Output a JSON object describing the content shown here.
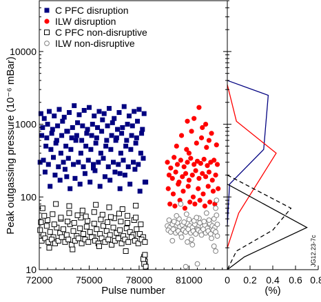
{
  "chart_data": [
    {
      "type": "scatter",
      "panel": "main",
      "xlabel": "Pulse number",
      "ylabel": "Peak outgassing pressure (10⁻⁶ mBar)",
      "xlim": [
        72000,
        83300
      ],
      "ylim": [
        10,
        50000
      ],
      "y_scale": "log",
      "x_ticks": [
        72000,
        75000,
        78000,
        81000
      ],
      "x_tick_labels": [
        "72000",
        "75000",
        "78000",
        "81000"
      ],
      "y_ticks": [
        10,
        100,
        1000,
        10000
      ],
      "y_tick_labels": [
        "10",
        "100",
        "1000",
        "10000"
      ],
      "legend_position": "top-left",
      "series": [
        {
          "name": "C PFC disruption",
          "marker": "filled-square",
          "color": "#000080",
          "x": [
            72100,
            72300,
            72600,
            72900,
            73200,
            73500,
            73800,
            74100,
            74400,
            74700,
            75000,
            75300,
            75600,
            75900,
            76200,
            76500,
            76800,
            77100,
            77400,
            77700,
            78000,
            78300,
            72200,
            72500,
            72800,
            73100,
            73400,
            73700,
            74000,
            74300,
            74600,
            74900,
            75200,
            75500,
            75800,
            76100,
            76400,
            76700,
            77000,
            77300,
            77600,
            77900,
            78200,
            72150,
            72450,
            72750,
            73050,
            73350,
            73650,
            73950,
            74250,
            74550,
            74850,
            75150,
            75450,
            75750,
            76050,
            76350,
            76650,
            76950,
            77250,
            77550,
            77850,
            78150,
            72400,
            72700,
            73000,
            73300,
            73600,
            73900,
            74200,
            74500,
            74800,
            75100,
            75400,
            75700,
            76000,
            76300,
            76600,
            76900,
            77200,
            77500,
            77800,
            78100,
            72250,
            72550,
            72850,
            73150,
            73450,
            73750,
            74050,
            74350,
            74650,
            74950,
            75250,
            75550,
            75850,
            76150,
            76450,
            76750,
            77050,
            77350,
            77650,
            77950,
            78250,
            72350,
            72950,
            73550,
            74150,
            74750,
            75350,
            75950,
            76550,
            77150,
            77750,
            78350,
            72650,
            73250,
            73850,
            74450,
            75050,
            75650,
            76250,
            76850,
            77450,
            78050,
            72050,
            73650,
            75250,
            76850,
            78400
          ],
          "y": [
            1400,
            1200,
            1500,
            1300,
            1600,
            1250,
            1450,
            1800,
            1350,
            1550,
            1700,
            1300,
            1500,
            1400,
            1650,
            1200,
            1450,
            1750,
            1300,
            1500,
            1600,
            1400,
            900,
            1000,
            850,
            950,
            1100,
            800,
            900,
            1050,
            950,
            850,
            1000,
            900,
            1150,
            950,
            1050,
            850,
            900,
            1000,
            950,
            1100,
            850,
            700,
            650,
            750,
            600,
            700,
            800,
            650,
            700,
            600,
            750,
            700,
            650,
            800,
            600,
            700,
            650,
            750,
            600,
            700,
            650,
            750,
            500,
            450,
            550,
            400,
            500,
            450,
            600,
            400,
            500,
            450,
            550,
            400,
            500,
            450,
            600,
            400,
            500,
            450,
            550,
            400,
            320,
            280,
            350,
            260,
            300,
            340,
            280,
            300,
            260,
            320,
            280,
            300,
            340,
            260,
            300,
            280,
            320,
            260,
            300,
            280,
            340,
            220,
            200,
            240,
            180,
            210,
            230,
            190,
            220,
            200,
            240,
            160,
            140,
            170,
            130,
            150,
            160,
            140,
            170,
            130,
            150,
            120,
            300,
            190,
            250,
            210,
            160
          ]
        },
        {
          "name": "ILW disruption",
          "marker": "filled-circle",
          "color": "#ff0000",
          "x": [
            79700,
            79900,
            80100,
            80300,
            80500,
            80700,
            80900,
            81100,
            81300,
            81500,
            81700,
            81900,
            82100,
            82300,
            82500,
            82700,
            79800,
            80000,
            80200,
            80400,
            80600,
            80800,
            81000,
            81200,
            81400,
            81600,
            81800,
            82000,
            82200,
            82400,
            82600,
            79750,
            80050,
            80350,
            80650,
            80950,
            81250,
            81550,
            81850,
            82150,
            82450,
            82750,
            79850,
            80150,
            80450,
            80750,
            81050,
            81350,
            81650,
            81950,
            82250,
            82550,
            80250,
            80850,
            81450,
            82050,
            82650,
            80550,
            81150,
            81750,
            82350,
            81600,
            81300,
            82000,
            81800,
            80900,
            82200,
            81000
          ],
          "y": [
            300,
            250,
            350,
            280,
            320,
            260,
            300,
            340,
            280,
            310,
            290,
            330,
            270,
            300,
            320,
            280,
            200,
            180,
            220,
            160,
            190,
            210,
            170,
            200,
            230,
            180,
            210,
            190,
            220,
            170,
            200,
            130,
            110,
            150,
            120,
            140,
            100,
            130,
            110,
            140,
            120,
            130,
            80,
            75,
            90,
            70,
            85,
            80,
            90,
            75,
            85,
            80,
            500,
            450,
            550,
            480,
            520,
            700,
            800,
            650,
            750,
            1700,
            1200,
            1000,
            900,
            1100,
            600,
            400
          ]
        },
        {
          "name": "C PFC non-disruptive",
          "marker": "open-square",
          "color": "#000000",
          "x": [
            72050,
            72250,
            72450,
            72650,
            72850,
            73050,
            73250,
            73450,
            73650,
            73850,
            74050,
            74250,
            74450,
            74650,
            74850,
            75050,
            75250,
            75450,
            75650,
            75850,
            76050,
            76250,
            76450,
            76650,
            76850,
            77050,
            77250,
            77450,
            77650,
            77850,
            78050,
            78250,
            72150,
            72350,
            72550,
            72750,
            72950,
            73150,
            73350,
            73550,
            73750,
            73950,
            74150,
            74350,
            74550,
            74750,
            74950,
            75150,
            75350,
            75550,
            75750,
            75950,
            76150,
            76350,
            76550,
            76750,
            76950,
            77150,
            77350,
            77550,
            77750,
            77950,
            78150,
            78350,
            72100,
            72500,
            72900,
            73300,
            73700,
            74100,
            74500,
            74900,
            75300,
            75700,
            76100,
            76500,
            76900,
            77300,
            77700,
            78100,
            72300,
            72800,
            73300,
            73800,
            74300,
            74800,
            75300,
            75800,
            76300,
            76800,
            77300,
            77800,
            72200,
            73000,
            73800,
            74600,
            75400,
            76200,
            77000,
            77800,
            72600,
            74000,
            75600,
            77200,
            78300,
            78350,
            78300,
            78400,
            78250,
            78350
          ],
          "y": [
            35,
            30,
            40,
            33,
            28,
            38,
            32,
            36,
            30,
            42,
            34,
            29,
            37,
            31,
            39,
            33,
            28,
            36,
            31,
            40,
            34,
            30,
            38,
            32,
            35,
            29,
            37,
            33,
            30,
            36,
            31,
            28,
            25,
            27,
            24,
            26,
            23,
            25,
            28,
            24,
            26,
            22,
            25,
            27,
            23,
            26,
            24,
            28,
            25,
            23,
            27,
            24,
            26,
            22,
            25,
            27,
            23,
            26,
            24,
            28,
            25,
            23,
            26,
            24,
            45,
            48,
            42,
            50,
            46,
            44,
            52,
            47,
            43,
            49,
            45,
            51,
            46,
            44,
            48,
            42,
            55,
            58,
            52,
            60,
            56,
            54,
            62,
            57,
            53,
            59,
            55,
            52,
            70,
            80,
            75,
            65,
            78,
            72,
            68,
            76,
            20,
            19,
            21,
            18,
            15,
            13,
            12,
            11,
            14,
            16
          ]
        },
        {
          "name": "ILW non-disruptive",
          "marker": "open-circle",
          "color": "#808080",
          "x": [
            79700,
            79850,
            80000,
            80150,
            80300,
            80450,
            80600,
            80750,
            80900,
            81050,
            81200,
            81350,
            81500,
            81650,
            81800,
            81950,
            82100,
            82250,
            82400,
            82550,
            82700,
            79750,
            79900,
            80050,
            80200,
            80350,
            80500,
            80650,
            80800,
            80950,
            81100,
            81250,
            81400,
            81550,
            81700,
            81850,
            82000,
            82150,
            82300,
            82450,
            82600,
            79800,
            80100,
            80400,
            80700,
            81000,
            81300,
            81600,
            81900,
            82200,
            82500,
            80250,
            80850,
            81450,
            82050,
            82650,
            80550,
            81150,
            81750,
            82350,
            82700,
            82600,
            82650,
            80500,
            80000,
            81200,
            80900,
            82500,
            82600,
            80800,
            81500
          ],
          "y": [
            40,
            38,
            42,
            36,
            44,
            39,
            41,
            37,
            43,
            40,
            38,
            42,
            36,
            44,
            39,
            41,
            37,
            43,
            40,
            38,
            42,
            35,
            33,
            36,
            32,
            34,
            31,
            35,
            33,
            36,
            32,
            34,
            31,
            35,
            33,
            36,
            32,
            34,
            31,
            35,
            33,
            48,
            46,
            50,
            45,
            49,
            47,
            51,
            46,
            48,
            50,
            55,
            58,
            52,
            60,
            56,
            28,
            26,
            30,
            27,
            29,
            70,
            90,
            80,
            25,
            22,
            24,
            21,
            18,
            11,
            12
          ]
        }
      ]
    },
    {
      "type": "line",
      "panel": "distribution",
      "xlabel": "(%)",
      "xlim": [
        0,
        0.8
      ],
      "ylim": [
        10,
        50000
      ],
      "y_scale": "log",
      "x_ticks": [
        0,
        0.2,
        0.4,
        0.6,
        0.8
      ],
      "x_tick_labels": [
        "0",
        "0.2",
        "0.4",
        "0.6",
        "0.8"
      ],
      "series": [
        {
          "name": "C PFC disruption",
          "color": "#000080",
          "style": "solid",
          "x": [
            0,
            0.36,
            0.32,
            0.02,
            0
          ],
          "y": [
            4000,
            2500,
            450,
            150,
            40
          ]
        },
        {
          "name": "ILW disruption",
          "color": "#ff0000",
          "style": "solid",
          "x": [
            0,
            0.08,
            0.43,
            0.1,
            0
          ],
          "y": [
            3500,
            1100,
            400,
            60,
            20
          ]
        },
        {
          "name": "C PFC non-disruptive",
          "color": "#000000",
          "style": "dashed",
          "x": [
            0,
            0.56,
            0.4,
            0.08,
            0
          ],
          "y": [
            200,
            70,
            35,
            18,
            10
          ]
        },
        {
          "name": "ILW non-disruptive",
          "color": "#000000",
          "style": "solid",
          "x": [
            0,
            0.7,
            0.15,
            0
          ],
          "y": [
            150,
            38,
            15,
            10
          ]
        }
      ]
    }
  ],
  "annotation": {
    "code": "JG12.23-7c"
  }
}
